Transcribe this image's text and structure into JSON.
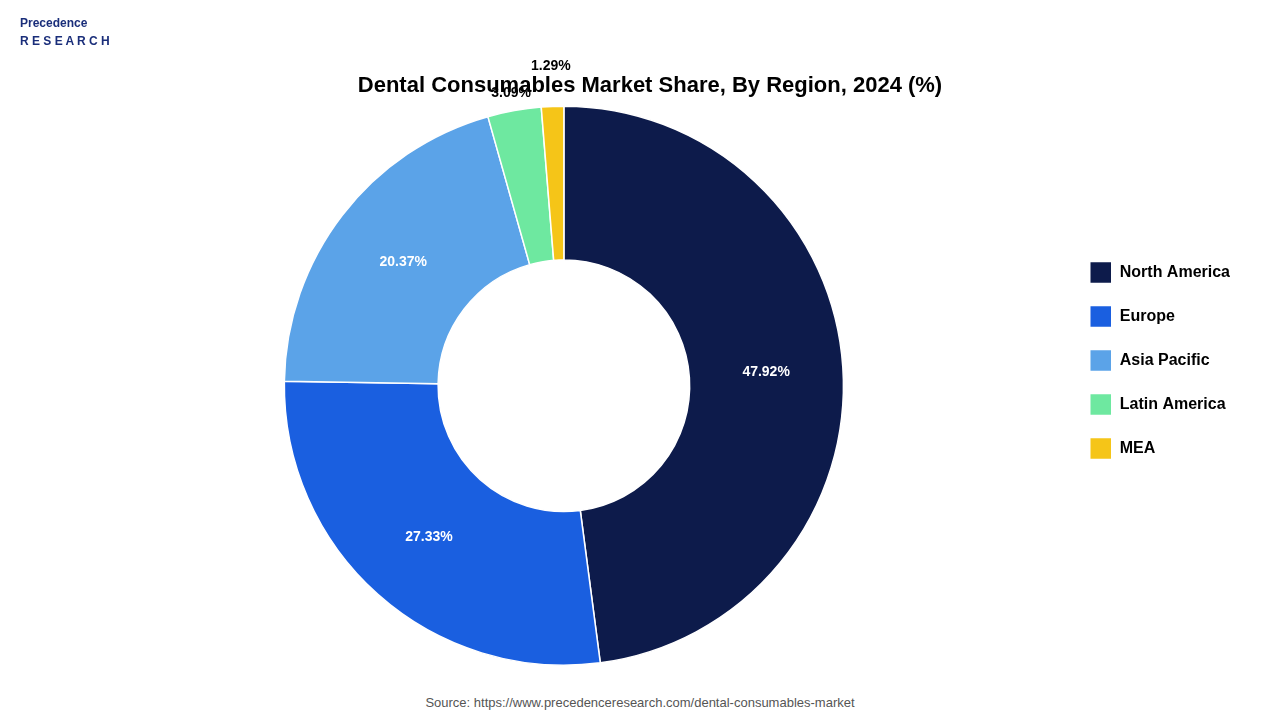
{
  "chart_data": {
    "type": "donut",
    "title": "Dental Consumables Market Share, By Region, 2024 (%)",
    "categories": [
      "North America",
      "Europe",
      "Asia Pacific",
      "Latin America",
      "MEA"
    ],
    "values": [
      47.92,
      27.33,
      20.37,
      3.09,
      1.29
    ],
    "value_labels": [
      "47.92%",
      "27.33%",
      "20.37%",
      "3.09%",
      "1.29%"
    ],
    "colors": [
      "#0d1b4b",
      "#1a5fe0",
      "#5ba3e8",
      "#6ee8a0",
      "#f5c518"
    ],
    "data_labels": true,
    "legend": "right",
    "annotations": [
      "Precedence\nR E S E A R C H",
      "Source: https://www.precedenceresearch.com/dental-consumables-market"
    ]
  }
}
